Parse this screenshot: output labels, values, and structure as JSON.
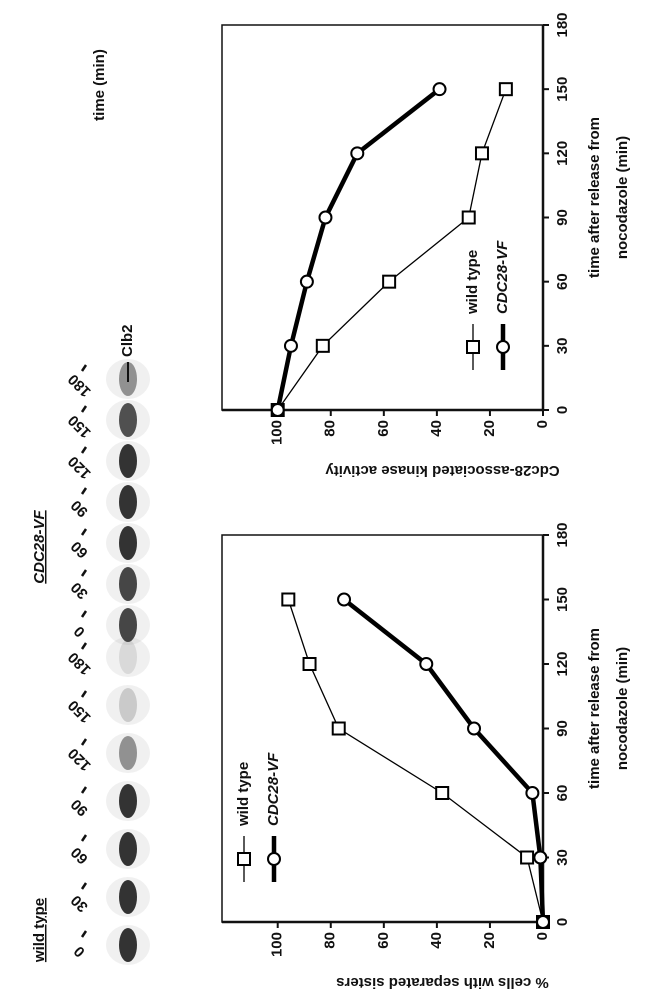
{
  "blot": {
    "time_label": "time (min)",
    "band_label": "Clb2",
    "panels": [
      {
        "title": "wild type",
        "lanes": [
          "0",
          "30",
          "60",
          "90",
          "120",
          "150",
          "180"
        ]
      },
      {
        "title": "CDC28-VF",
        "lanes": [
          "0",
          "30",
          "60",
          "90",
          "120",
          "150",
          "180"
        ]
      }
    ]
  },
  "chart_data": [
    {
      "type": "line",
      "ylabel": "% cells with separated sisters",
      "xlabel": [
        "time after release from",
        "nocodazole (min)"
      ],
      "x": [
        0,
        30,
        60,
        90,
        120,
        150
      ],
      "series": [
        {
          "name": "wild type",
          "color": "#000000",
          "marker": "square",
          "values": [
            0,
            6,
            38,
            77,
            88,
            96
          ]
        },
        {
          "name": "CDC28-VF",
          "color": "#000000",
          "marker": "circle",
          "values": [
            0,
            1,
            4,
            26,
            44,
            75
          ]
        }
      ],
      "xlim": [
        0,
        180
      ],
      "xticks": [
        0,
        30,
        60,
        90,
        120,
        150,
        180
      ],
      "ylim": [
        0,
        121
      ],
      "yticks": [
        0,
        20,
        40,
        60,
        80,
        100
      ],
      "legend": "upper left"
    },
    {
      "type": "line",
      "ylabel": "Cdc28-associated kinase activity",
      "xlabel": [
        "time after release from",
        "nocodazole (min)"
      ],
      "x": [
        0,
        30,
        60,
        90,
        120,
        150
      ],
      "series": [
        {
          "name": "wild type",
          "color": "#000000",
          "marker": "square",
          "values": [
            100,
            83,
            58,
            28,
            23,
            14
          ]
        },
        {
          "name": "CDC28-VF",
          "color": "#000000",
          "marker": "circle",
          "values": [
            100,
            95,
            89,
            82,
            70,
            39
          ]
        }
      ],
      "xlim": [
        0,
        180
      ],
      "xticks": [
        0,
        30,
        60,
        90,
        120,
        150,
        180
      ],
      "ylim": [
        0,
        121
      ],
      "yticks": [
        0,
        20,
        40,
        60,
        80,
        100
      ],
      "legend": "lower left"
    }
  ]
}
